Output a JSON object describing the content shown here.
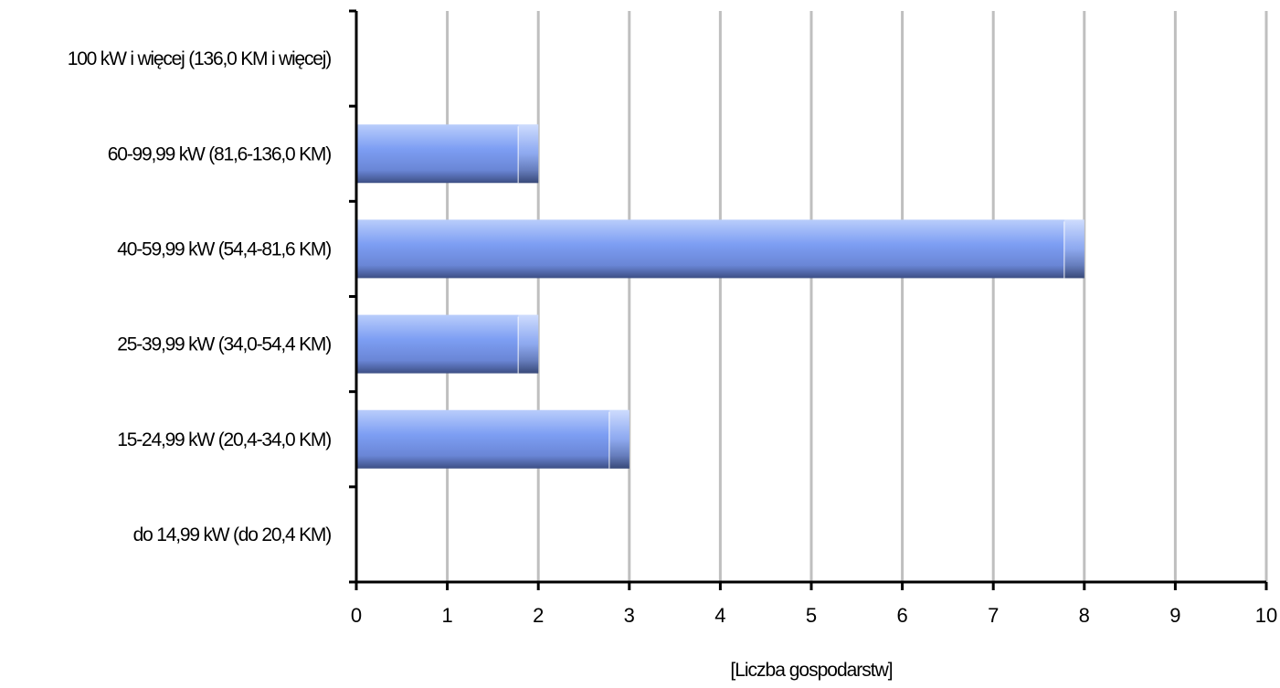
{
  "chart_data": {
    "type": "bar",
    "orientation": "horizontal",
    "categories": [
      "100 kW i więcej (136,0 KM i więcej)",
      "60-99,99 kW (81,6-136,0 KM)",
      "40-59,99 kW (54,4-81,6 KM)",
      "25-39,99 kW (34,0-54,4 KM)",
      "15-24,99 kW (20,4-34,0 KM)",
      "do 14,99 kW (do 20,4 KM)"
    ],
    "values": [
      0,
      2,
      8,
      2,
      3,
      0
    ],
    "xlabel": "[Liczba gospodarstw]",
    "ylabel": "",
    "xlim": [
      0,
      10
    ],
    "xticks": [
      "0",
      "1",
      "2",
      "3",
      "4",
      "5",
      "6",
      "7",
      "8",
      "9",
      "10"
    ],
    "grid": "vertical",
    "legend": "none",
    "colors": {
      "bar_top": "#b9cdfb",
      "bar_mid": "#7d9ef3",
      "bar_bottom": "#3d4f85",
      "grid": "#bfbfbf",
      "axis": "#000000"
    }
  }
}
